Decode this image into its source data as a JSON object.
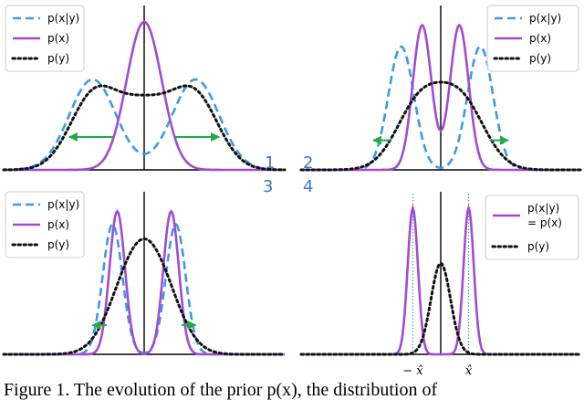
{
  "chart_data": [
    {
      "type": "line",
      "panel_label": "1",
      "legend": {
        "placement": "top-left",
        "entries": [
          "p(x|y)",
          "p(x)",
          "p(y)"
        ]
      },
      "x_range": [
        -6,
        6
      ],
      "y_range": [
        0,
        1
      ],
      "series": [
        {
          "name": "p(x|y)",
          "kind": "mixture",
          "components": [
            {
              "mean": -2.2,
              "sd": 1.0,
              "amp": 0.55
            },
            {
              "mean": 2.2,
              "sd": 1.0,
              "amp": 0.55
            }
          ],
          "color": "#3b9be8",
          "style": "dashed"
        },
        {
          "name": "p(x)",
          "kind": "mixture",
          "components": [
            {
              "mean": 0,
              "sd": 0.75,
              "amp": 0.9
            }
          ],
          "color": "#a24bd1",
          "style": "solid"
        },
        {
          "name": "p(y)",
          "kind": "mixture",
          "components": [
            {
              "mean": -2.2,
              "sd": 1.0,
              "amp": 0.42
            },
            {
              "mean": 2.2,
              "sd": 1.0,
              "amp": 0.42
            },
            {
              "mean": 0,
              "sd": 1.2,
              "amp": 0.38
            }
          ],
          "color": "#111111",
          "style": "dotted"
        }
      ],
      "arrows": [
        {
          "from": -1.3,
          "to": -3.2,
          "y": 0.2
        },
        {
          "from": 1.3,
          "to": 3.2,
          "y": 0.2
        }
      ],
      "ticks": []
    },
    {
      "type": "line",
      "panel_label": "2",
      "legend": {
        "placement": "top-right",
        "entries": [
          "p(x|y)",
          "p(x)",
          "p(y)"
        ]
      },
      "x_range": [
        -6,
        6
      ],
      "y_range": [
        0,
        1
      ],
      "series": [
        {
          "name": "p(x|y)",
          "kind": "mixture",
          "components": [
            {
              "mean": -1.7,
              "sd": 0.55,
              "amp": 0.75
            },
            {
              "mean": 1.7,
              "sd": 0.55,
              "amp": 0.75
            }
          ],
          "color": "#3b9be8",
          "style": "dashed"
        },
        {
          "name": "p(x)",
          "kind": "mixture",
          "components": [
            {
              "mean": -0.8,
              "sd": 0.4,
              "amp": 0.88
            },
            {
              "mean": 0.8,
              "sd": 0.4,
              "amp": 0.88
            }
          ],
          "color": "#a24bd1",
          "style": "solid"
        },
        {
          "name": "p(y)",
          "kind": "mixture",
          "components": [
            {
              "mean": -0.9,
              "sd": 1.0,
              "amp": 0.4
            },
            {
              "mean": 0.9,
              "sd": 1.0,
              "amp": 0.4
            }
          ],
          "color": "#111111",
          "style": "dotted"
        }
      ],
      "arrows": [
        {
          "from": -2.1,
          "to": -2.9,
          "y": 0.18
        },
        {
          "from": 2.1,
          "to": 2.9,
          "y": 0.18
        }
      ],
      "ticks": []
    },
    {
      "type": "line",
      "panel_label": "3",
      "legend": {
        "placement": "top-left",
        "entries": [
          "p(x|y)",
          "p(x)",
          "p(y)"
        ]
      },
      "x_range": [
        -6,
        6
      ],
      "y_range": [
        0,
        1
      ],
      "series": [
        {
          "name": "p(x|y)",
          "kind": "mixture",
          "components": [
            {
              "mean": -1.35,
              "sd": 0.42,
              "amp": 0.8
            },
            {
              "mean": 1.35,
              "sd": 0.42,
              "amp": 0.8
            }
          ],
          "color": "#3b9be8",
          "style": "dashed"
        },
        {
          "name": "p(x)",
          "kind": "mixture",
          "components": [
            {
              "mean": -1.15,
              "sd": 0.33,
              "amp": 0.88
            },
            {
              "mean": 1.15,
              "sd": 0.33,
              "amp": 0.88
            }
          ],
          "color": "#a24bd1",
          "style": "solid"
        },
        {
          "name": "p(y)",
          "kind": "mixture",
          "components": [
            {
              "mean": -0.55,
              "sd": 0.95,
              "amp": 0.42
            },
            {
              "mean": 0.55,
              "sd": 0.95,
              "amp": 0.42
            }
          ],
          "color": "#111111",
          "style": "dotted"
        }
      ],
      "arrows": [
        {
          "from": -1.6,
          "to": -2.2,
          "y": 0.18
        },
        {
          "from": 1.6,
          "to": 2.2,
          "y": 0.18
        }
      ],
      "ticks": []
    },
    {
      "type": "line",
      "panel_label": "4",
      "legend": {
        "placement": "top-right",
        "entries": [
          "p(x|y)\n= p(x)",
          "p(y)"
        ]
      },
      "x_range": [
        -6,
        6
      ],
      "y_range": [
        0,
        1
      ],
      "series": [
        {
          "name": "p(x|y) = p(x)",
          "kind": "mixture",
          "components": [
            {
              "mean": -1.2,
              "sd": 0.22,
              "amp": 0.9
            },
            {
              "mean": 1.2,
              "sd": 0.22,
              "amp": 0.9
            }
          ],
          "color": "#a24bd1",
          "style": "solid"
        },
        {
          "name": "p(y)",
          "kind": "mixture",
          "components": [
            {
              "mean": 0,
              "sd": 0.42,
              "amp": 0.56
            }
          ],
          "color": "#111111",
          "style": "dotted"
        }
      ],
      "guides": [
        -1.2,
        1.2
      ],
      "arrows": [],
      "ticks": [
        {
          "x": -1.2,
          "label": "− x̂"
        },
        {
          "x": 1.2,
          "label": "x̂"
        }
      ]
    }
  ],
  "caption": "Figure 1. The evolution of the prior p(x), the distribution of",
  "colors": {
    "cond": "#3b9be8",
    "prior": "#a24bd1",
    "marginal": "#111111",
    "arrow": "#22aa44",
    "panel_number": "#3b78c3"
  }
}
